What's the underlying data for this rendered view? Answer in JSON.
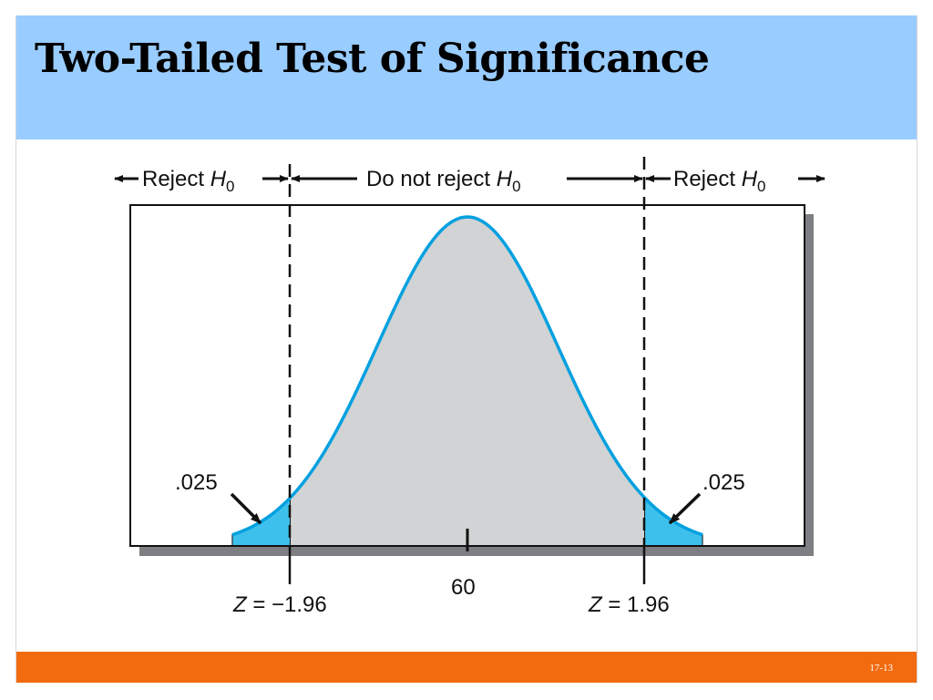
{
  "slide": {
    "title": "Two-Tailed Test of Significance",
    "slide_number": "17-13"
  },
  "colors": {
    "title_band": "#99ccff",
    "footer_band": "#f26b0f",
    "curve": "#00a0e0",
    "center_fill": "#d1d3d4",
    "tail_fill": "#3ec0ec",
    "box_shadow": "#7d7f82"
  },
  "regions": {
    "left_reject": {
      "text": "Reject ",
      "symbol": "H",
      "subscript": "0"
    },
    "middle": {
      "text": "Do not reject ",
      "symbol": "H",
      "subscript": "0"
    },
    "right_reject": {
      "text": "Reject ",
      "symbol": "H",
      "subscript": "0"
    }
  },
  "tails": {
    "left_area": ".025",
    "right_area": ".025"
  },
  "axis": {
    "center_value": "60",
    "left_critical": {
      "symbol": "Z",
      "text": " = −1.96"
    },
    "right_critical": {
      "symbol": "Z",
      "text": " = 1.96"
    }
  }
}
